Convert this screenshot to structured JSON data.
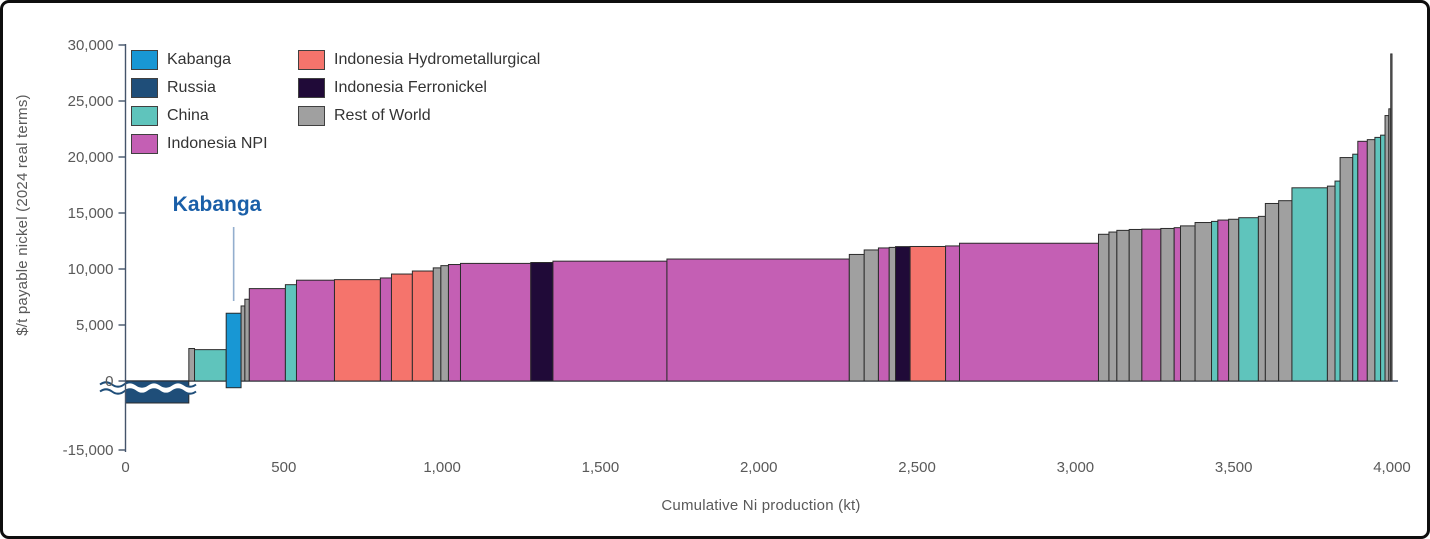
{
  "chart_data": {
    "type": "bar",
    "variant": "industry cost curve (variable-width sorted bars)",
    "title": "",
    "xlabel": "Cumulative Ni production (kt)",
    "ylabel": "$/t payable nickel (2024 real terms)",
    "x_axis": {
      "ticks": [
        {
          "label": "0",
          "value": 0
        },
        {
          "label": "500",
          "value": 500
        },
        {
          "label": "1,000",
          "value": 1000
        },
        {
          "label": "1,500",
          "value": 1500
        },
        {
          "label": "2,000",
          "value": 2000
        },
        {
          "label": "2,500",
          "value": 2500
        },
        {
          "label": "3,000",
          "value": 3000
        },
        {
          "label": "3,500",
          "value": 3500
        },
        {
          "label": "4,000",
          "value": 4000
        }
      ],
      "range": [
        0,
        4000
      ]
    },
    "y_axis": {
      "ticks": [
        {
          "label": "30,000",
          "value": 30000
        },
        {
          "label": "25,000",
          "value": 25000
        },
        {
          "label": "20,000",
          "value": 20000
        },
        {
          "label": "15,000",
          "value": 15000
        },
        {
          "label": "10,000",
          "value": 10000
        },
        {
          "label": "5,000",
          "value": 5000
        },
        {
          "label": "0",
          "value": 0
        },
        {
          "label": "-15,000",
          "value": -15000,
          "broken_scale": true
        }
      ],
      "range_top": [
        0,
        30000
      ],
      "axis_break": "scale broken below 0; negative Russia bar truncated with wave marks"
    },
    "legend": {
      "column1": [
        "Kabanga",
        "Russia",
        "China",
        "Indonesia NPI"
      ],
      "column2": [
        "Indonesia Hydrometallurgical",
        "Indonesia Ferronickel",
        "Rest of World"
      ]
    },
    "colors": {
      "Kabanga": "#1897D4",
      "Russia": "#1F4E79",
      "China": "#5FC4BC",
      "Indonesia NPI": "#C45FB4",
      "Indonesia Hydrometallurgical": "#F5746C",
      "Indonesia Ferronickel": "#200A38",
      "Rest of World": "#A0A0A0",
      "bar_outline": "#2B2B2B",
      "axis_line": "#44546A",
      "tick_text": "#595959",
      "annotation_text": "#1A5FA8",
      "leader_line": "#93AECE"
    },
    "annotation": {
      "text": "Kabanga",
      "points_to_kt": 340
    },
    "bars": [
      {
        "category": "Russia",
        "from_kt": 0,
        "to_kt": 200,
        "cost": null,
        "note": "negative cost, cut off by axis break"
      },
      {
        "category": "Rest of World",
        "from_kt": 200,
        "to_kt": 218,
        "cost": 2900
      },
      {
        "category": "China",
        "from_kt": 218,
        "to_kt": 318,
        "cost": 2800
      },
      {
        "category": "Kabanga",
        "from_kt": 318,
        "to_kt": 365,
        "cost": 6050,
        "base": -600
      },
      {
        "category": "Rest of World",
        "from_kt": 365,
        "to_kt": 377,
        "cost": 6700
      },
      {
        "category": "Rest of World",
        "from_kt": 377,
        "to_kt": 391,
        "cost": 7300
      },
      {
        "category": "Indonesia NPI",
        "from_kt": 391,
        "to_kt": 505,
        "cost": 8250
      },
      {
        "category": "China",
        "from_kt": 505,
        "to_kt": 540,
        "cost": 8600
      },
      {
        "category": "Indonesia NPI",
        "from_kt": 540,
        "to_kt": 660,
        "cost": 9000
      },
      {
        "category": "Indonesia Hydrometallurgical",
        "from_kt": 660,
        "to_kt": 805,
        "cost": 9050
      },
      {
        "category": "Indonesia NPI",
        "from_kt": 805,
        "to_kt": 840,
        "cost": 9200
      },
      {
        "category": "Indonesia Hydrometallurgical",
        "from_kt": 840,
        "to_kt": 906,
        "cost": 9550
      },
      {
        "category": "Indonesia Hydrometallurgical",
        "from_kt": 906,
        "to_kt": 972,
        "cost": 9820
      },
      {
        "category": "Rest of World",
        "from_kt": 972,
        "to_kt": 996,
        "cost": 10100
      },
      {
        "category": "Rest of World",
        "from_kt": 996,
        "to_kt": 1020,
        "cost": 10300
      },
      {
        "category": "Indonesia NPI",
        "from_kt": 1020,
        "to_kt": 1058,
        "cost": 10400
      },
      {
        "category": "Indonesia NPI",
        "from_kt": 1058,
        "to_kt": 1280,
        "cost": 10500
      },
      {
        "category": "Indonesia Ferronickel",
        "from_kt": 1280,
        "to_kt": 1350,
        "cost": 10580
      },
      {
        "category": "Indonesia NPI",
        "from_kt": 1350,
        "to_kt": 1710,
        "cost": 10700
      },
      {
        "category": "Indonesia NPI",
        "from_kt": 1710,
        "to_kt": 2286,
        "cost": 10890
      },
      {
        "category": "Rest of World",
        "from_kt": 2286,
        "to_kt": 2333,
        "cost": 11300
      },
      {
        "category": "Rest of World",
        "from_kt": 2333,
        "to_kt": 2378,
        "cost": 11700
      },
      {
        "category": "Indonesia NPI",
        "from_kt": 2378,
        "to_kt": 2412,
        "cost": 11880
      },
      {
        "category": "Rest of World",
        "from_kt": 2412,
        "to_kt": 2432,
        "cost": 11930
      },
      {
        "category": "Indonesia Ferronickel",
        "from_kt": 2432,
        "to_kt": 2478,
        "cost": 12000
      },
      {
        "category": "Indonesia Hydrometallurgical",
        "from_kt": 2478,
        "to_kt": 2590,
        "cost": 12010
      },
      {
        "category": "Indonesia NPI",
        "from_kt": 2590,
        "to_kt": 2634,
        "cost": 12060
      },
      {
        "category": "Indonesia NPI",
        "from_kt": 2634,
        "to_kt": 3073,
        "cost": 12300
      },
      {
        "category": "Rest of World",
        "from_kt": 3073,
        "to_kt": 3106,
        "cost": 13100
      },
      {
        "category": "Rest of World",
        "from_kt": 3106,
        "to_kt": 3131,
        "cost": 13300
      },
      {
        "category": "Rest of World",
        "from_kt": 3131,
        "to_kt": 3170,
        "cost": 13450
      },
      {
        "category": "Rest of World",
        "from_kt": 3170,
        "to_kt": 3210,
        "cost": 13530
      },
      {
        "category": "Indonesia NPI",
        "from_kt": 3210,
        "to_kt": 3270,
        "cost": 13560
      },
      {
        "category": "Rest of World",
        "from_kt": 3270,
        "to_kt": 3312,
        "cost": 13620
      },
      {
        "category": "Indonesia NPI",
        "from_kt": 3312,
        "to_kt": 3332,
        "cost": 13690
      },
      {
        "category": "Rest of World",
        "from_kt": 3332,
        "to_kt": 3378,
        "cost": 13850
      },
      {
        "category": "Rest of World",
        "from_kt": 3378,
        "to_kt": 3430,
        "cost": 14150
      },
      {
        "category": "China",
        "from_kt": 3430,
        "to_kt": 3450,
        "cost": 14250
      },
      {
        "category": "Indonesia NPI",
        "from_kt": 3450,
        "to_kt": 3484,
        "cost": 14370
      },
      {
        "category": "Rest of World",
        "from_kt": 3484,
        "to_kt": 3516,
        "cost": 14440
      },
      {
        "category": "China",
        "from_kt": 3516,
        "to_kt": 3578,
        "cost": 14580
      },
      {
        "category": "Rest of World",
        "from_kt": 3578,
        "to_kt": 3600,
        "cost": 14700
      },
      {
        "category": "Rest of World",
        "from_kt": 3600,
        "to_kt": 3642,
        "cost": 15850
      },
      {
        "category": "Rest of World",
        "from_kt": 3642,
        "to_kt": 3684,
        "cost": 16100
      },
      {
        "category": "China",
        "from_kt": 3684,
        "to_kt": 3796,
        "cost": 17250
      },
      {
        "category": "Rest of World",
        "from_kt": 3796,
        "to_kt": 3820,
        "cost": 17400
      },
      {
        "category": "China",
        "from_kt": 3820,
        "to_kt": 3836,
        "cost": 17850
      },
      {
        "category": "Rest of World",
        "from_kt": 3836,
        "to_kt": 3876,
        "cost": 19950
      },
      {
        "category": "China",
        "from_kt": 3876,
        "to_kt": 3892,
        "cost": 20250
      },
      {
        "category": "Indonesia NPI",
        "from_kt": 3892,
        "to_kt": 3922,
        "cost": 21400
      },
      {
        "category": "Rest of World",
        "from_kt": 3922,
        "to_kt": 3946,
        "cost": 21550
      },
      {
        "category": "China",
        "from_kt": 3946,
        "to_kt": 3964,
        "cost": 21750
      },
      {
        "category": "China",
        "from_kt": 3964,
        "to_kt": 3978,
        "cost": 21950
      },
      {
        "category": "Rest of World",
        "from_kt": 3978,
        "to_kt": 3990,
        "cost": 23700
      },
      {
        "category": "Rest of World",
        "from_kt": 3990,
        "to_kt": 3996,
        "cost": 24300
      },
      {
        "category": "Rest of World",
        "from_kt": 3996,
        "to_kt": 4000,
        "cost": 29200
      }
    ]
  }
}
